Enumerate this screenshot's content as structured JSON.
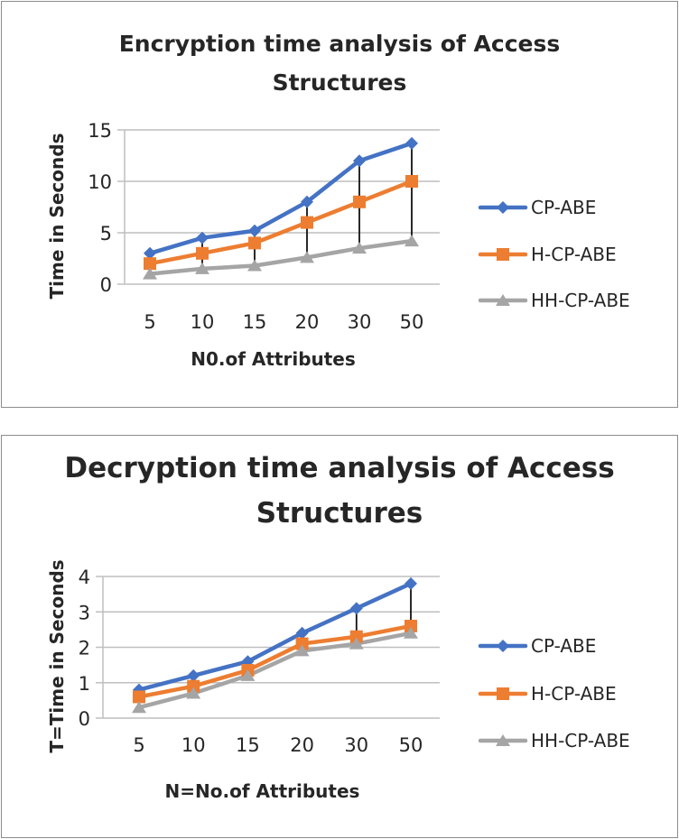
{
  "chart_data": [
    {
      "type": "line",
      "title": "Encryption time analysis of Access Structures",
      "title_lines": [
        "Encryption time analysis of Access",
        "Structures"
      ],
      "xlabel": "N0.of Attributes",
      "ylabel": "Time in Seconds",
      "categories": [
        "5",
        "10",
        "15",
        "20",
        "30",
        "50"
      ],
      "ylim": [
        0,
        15
      ],
      "yticks": [
        0,
        5,
        10,
        15
      ],
      "grid": true,
      "high_low_lines": true,
      "legend_placement": "right",
      "series": [
        {
          "name": "CP-ABE",
          "marker": "diamond",
          "color": "#4472C4",
          "values": [
            3,
            4.5,
            5.2,
            8,
            12,
            13.7
          ]
        },
        {
          "name": "H-CP-ABE",
          "marker": "square",
          "color": "#ED7D31",
          "values": [
            2,
            3,
            4,
            6,
            8,
            10
          ]
        },
        {
          "name": "HH-CP-ABE",
          "marker": "triangle",
          "color": "#A5A5A5",
          "values": [
            1,
            1.5,
            1.8,
            2.6,
            3.5,
            4.2
          ]
        }
      ]
    },
    {
      "type": "line",
      "title": "Decryption time analysis of Access Structures",
      "title_lines": [
        "Decryption time analysis of Access",
        "Structures"
      ],
      "xlabel": "N=No.of Attributes",
      "ylabel": "T=Time in Seconds",
      "categories": [
        "5",
        "10",
        "15",
        "20",
        "30",
        "50"
      ],
      "ylim": [
        0,
        4
      ],
      "yticks": [
        0,
        1,
        2,
        3,
        4
      ],
      "grid": true,
      "high_low_lines": true,
      "legend_placement": "right",
      "series": [
        {
          "name": "CP-ABE",
          "marker": "diamond",
          "color": "#4472C4",
          "values": [
            0.8,
            1.2,
            1.6,
            2.4,
            3.1,
            3.8
          ]
        },
        {
          "name": "H-CP-ABE",
          "marker": "square",
          "color": "#ED7D31",
          "values": [
            0.6,
            0.9,
            1.35,
            2.1,
            2.3,
            2.6
          ]
        },
        {
          "name": "HH-CP-ABE",
          "marker": "triangle",
          "color": "#A5A5A5",
          "values": [
            0.3,
            0.7,
            1.2,
            1.9,
            2.1,
            2.4
          ]
        }
      ]
    }
  ]
}
